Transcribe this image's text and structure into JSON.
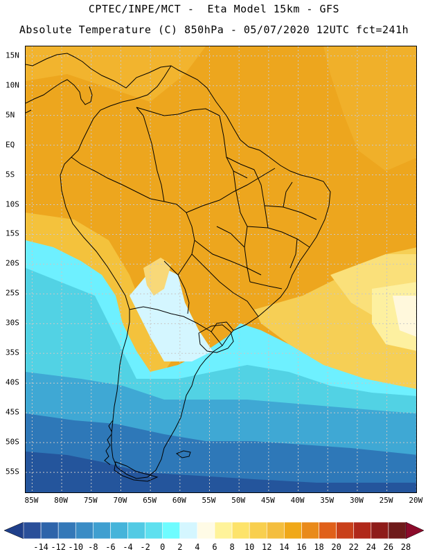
{
  "header": {
    "title_line1": "CPTEC/INPE/MCT -  Eta Model 15km - GFS",
    "title_line2": "Absolute Temperature (C) 850hPa - 05/07/2020 12UTC fct=241h"
  },
  "axes": {
    "lat_labels": [
      "15N",
      "10N",
      "5N",
      "EQ",
      "5S",
      "10S",
      "15S",
      "20S",
      "25S",
      "30S",
      "35S",
      "40S",
      "45S",
      "50S",
      "55S"
    ],
    "lat_values": [
      15,
      10,
      5,
      0,
      -5,
      -10,
      -15,
      -20,
      -25,
      -30,
      -35,
      -40,
      -45,
      -50,
      -55
    ],
    "lon_labels": [
      "85W",
      "80W",
      "75W",
      "70W",
      "65W",
      "60W",
      "55W",
      "50W",
      "45W",
      "40W",
      "35W",
      "30W",
      "25W",
      "20W"
    ],
    "lon_values": [
      -85,
      -80,
      -75,
      -70,
      -65,
      -60,
      -55,
      -50,
      -45,
      -40,
      -35,
      -30,
      -25,
      -20
    ],
    "lat_range": [
      -58.6,
      16.6
    ],
    "lon_range": [
      -86.1,
      -19.8
    ]
  },
  "legend": {
    "labels": [
      "-14",
      "-12",
      "-10",
      "-8",
      "-6",
      "-4",
      "-2",
      "0",
      "2",
      "4",
      "6",
      "8",
      "10",
      "12",
      "14",
      "16",
      "18",
      "20",
      "22",
      "24",
      "26",
      "28"
    ],
    "under_color": "#1f3f8a",
    "over_color": "#8b0a2a",
    "bin_colors": [
      "#2a4f99",
      "#2e64aa",
      "#3478b8",
      "#3a8cc5",
      "#3f9fd0",
      "#45b4da",
      "#52cae4",
      "#5ee0ef",
      "#6efcff",
      "#d4f6ff",
      "#fffbe6",
      "#fff39a",
      "#fde36a",
      "#f8cf4e",
      "#f4be3e",
      "#f0a818",
      "#e98a1a",
      "#e0601a",
      "#c9401a",
      "#b0281a",
      "#8e1c1a",
      "#6e1a1a"
    ]
  },
  "regions": {
    "northern_sector_color": "#eda61e",
    "subtropical_band_color": "#f4c23c",
    "ocean_mid_color": "#f6cf55",
    "light_yellow_color": "#fdf0a0",
    "cream_color": "#fff8dc",
    "cold_cyan_color": "#6ef0ff",
    "cold_teal_color": "#52d2e4",
    "cold_blue_color": "#3fa8d4",
    "cold_deep_color": "#2e78b8",
    "cold_deepest_color": "#24559c"
  }
}
